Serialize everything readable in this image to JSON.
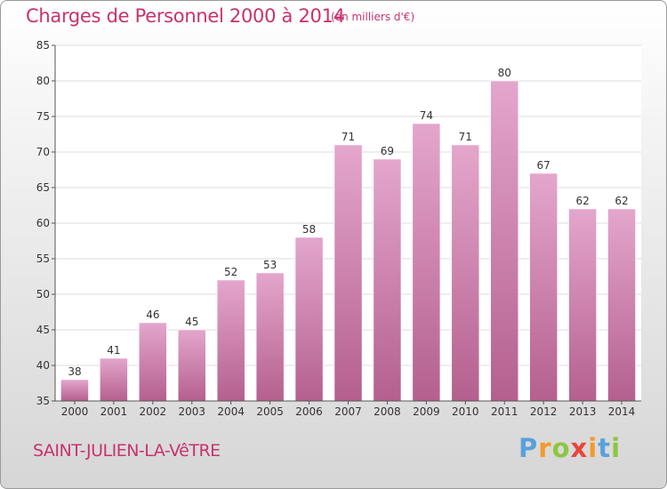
{
  "header": {
    "title": "Charges de Personnel 2000 à 2014",
    "subtitle": "(en milliers d'€)"
  },
  "footer": {
    "commune": "SAINT-JULIEN-LA-VêTRE",
    "logo": "Proxiti"
  },
  "colors": {
    "bar_top": "#e4a6cc",
    "bar_bottom": "#b4608e",
    "accent": "#c8326e"
  },
  "chart_data": {
    "type": "bar",
    "title": "Charges de Personnel 2000 à 2014",
    "subtitle": "(en milliers d'€)",
    "categories": [
      "2000",
      "2001",
      "2002",
      "2003",
      "2004",
      "2005",
      "2006",
      "2007",
      "2008",
      "2009",
      "2010",
      "2011",
      "2012",
      "2013",
      "2014"
    ],
    "values": [
      38,
      41,
      46,
      45,
      52,
      53,
      58,
      71,
      69,
      74,
      71,
      80,
      67,
      62,
      62
    ],
    "ylim": [
      35,
      85
    ],
    "yticks": [
      35,
      40,
      45,
      50,
      55,
      60,
      65,
      70,
      75,
      80,
      85
    ],
    "grid": true,
    "legend": "none"
  }
}
